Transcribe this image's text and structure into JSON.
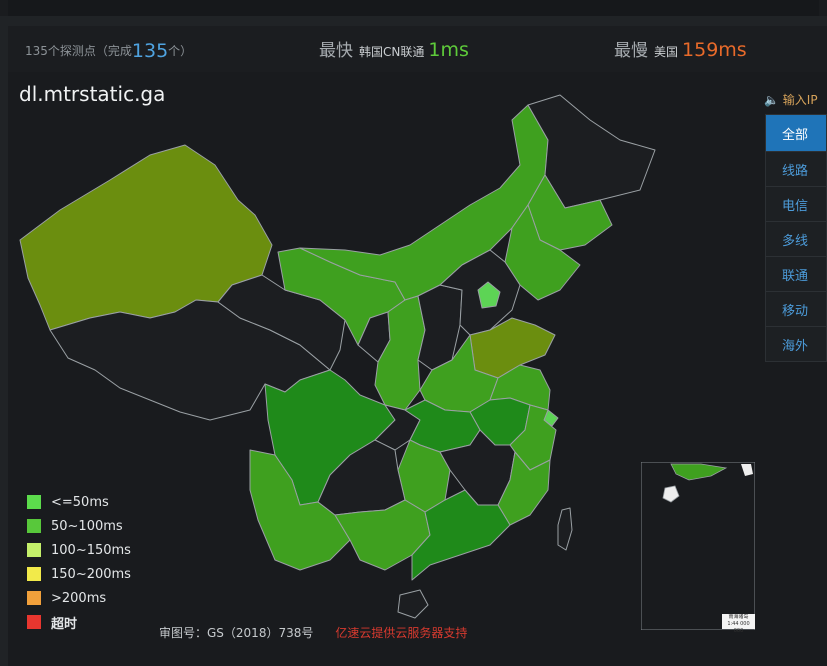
{
  "stats": {
    "count_prefix": "135个探测点（完成",
    "count_done": "135",
    "count_suffix": "个）",
    "fastest_title": "最快",
    "fastest_loc": "韩国CN联通",
    "fastest_value": "1ms",
    "slowest_title": "最慢",
    "slowest_loc": "美国",
    "slowest_value": "159ms"
  },
  "domain": "dl.mtrstatic.ga",
  "ip_input_label": "输入IP",
  "tabs": [
    {
      "label": "全部",
      "active": true
    },
    {
      "label": "线路",
      "active": false
    },
    {
      "label": "电信",
      "active": false
    },
    {
      "label": "多线",
      "active": false
    },
    {
      "label": "联通",
      "active": false
    },
    {
      "label": "移动",
      "active": false
    },
    {
      "label": "海外",
      "active": false
    }
  ],
  "legend": [
    {
      "label": "<=50ms",
      "color": "#5cdc4c"
    },
    {
      "label": "50~100ms",
      "color": "#58c83b"
    },
    {
      "label": "100~150ms",
      "color": "#c4ef6a"
    },
    {
      "label": "150~200ms",
      "color": "#f2ea4a"
    },
    {
      "label": ">200ms",
      "color": "#f1a03b"
    },
    {
      "label": "超时",
      "color": "#e8362f"
    }
  ],
  "footer": {
    "approval": "审图号：GS（2018）738号",
    "sponsor": "亿速云提供云服务器支持"
  },
  "map_colors": {
    "olive": "#6b8e0f",
    "green": "#3fa01f",
    "dark_green": "#1f8a1a",
    "light_green": "#5dd455",
    "empty": "#1c1e21",
    "border": "#9aa0a4"
  },
  "inset_label": "南海诸岛"
}
